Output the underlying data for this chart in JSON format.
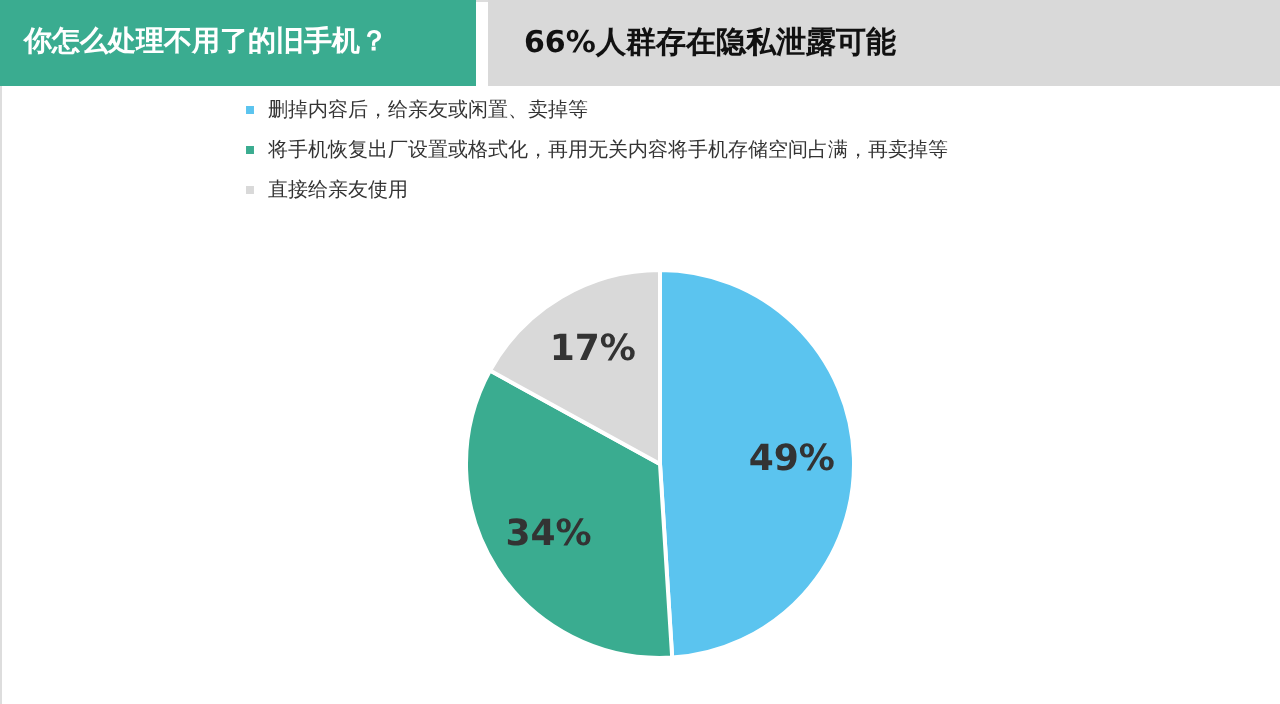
{
  "chart_data": {
    "type": "pie",
    "title": "你怎么处理不用了的旧手机？",
    "subtitle": "66%人群存在隐私泄露可能",
    "categories": [
      "删掉内容后，给亲友或闲置、卖掉等",
      "将手机恢复出厂设置或格式化，再用无关内容将手机存储空间占满，再卖掉等",
      "直接给亲友使用"
    ],
    "values": [
      49,
      34,
      17
    ],
    "colors": [
      "#5bc4ef",
      "#3aac90",
      "#d9d9d9"
    ],
    "value_labels": [
      "49%",
      "34%",
      "17%"
    ],
    "legend": "top"
  }
}
